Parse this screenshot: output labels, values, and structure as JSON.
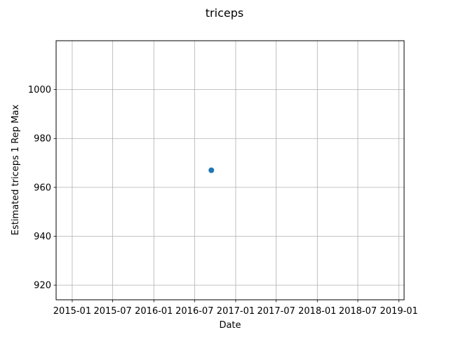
{
  "chart_data": {
    "type": "scatter",
    "title": "triceps",
    "xlabel": "Date",
    "ylabel": "Estimated triceps 1 Rep Max",
    "x_scale": "date",
    "xlim": [
      "2014-10-21",
      "2019-01-24"
    ],
    "ylim": [
      914,
      1020
    ],
    "x_ticks": [
      "2015-01",
      "2015-07",
      "2016-01",
      "2016-07",
      "2017-01",
      "2017-07",
      "2018-01",
      "2018-07",
      "2019-01"
    ],
    "y_ticks": [
      920,
      940,
      960,
      980,
      1000
    ],
    "grid": true,
    "legend": "none",
    "series": [
      {
        "color": "#1f77b4",
        "points": [
          {
            "x": "2016-09-14",
            "y": 967
          }
        ]
      }
    ]
  }
}
